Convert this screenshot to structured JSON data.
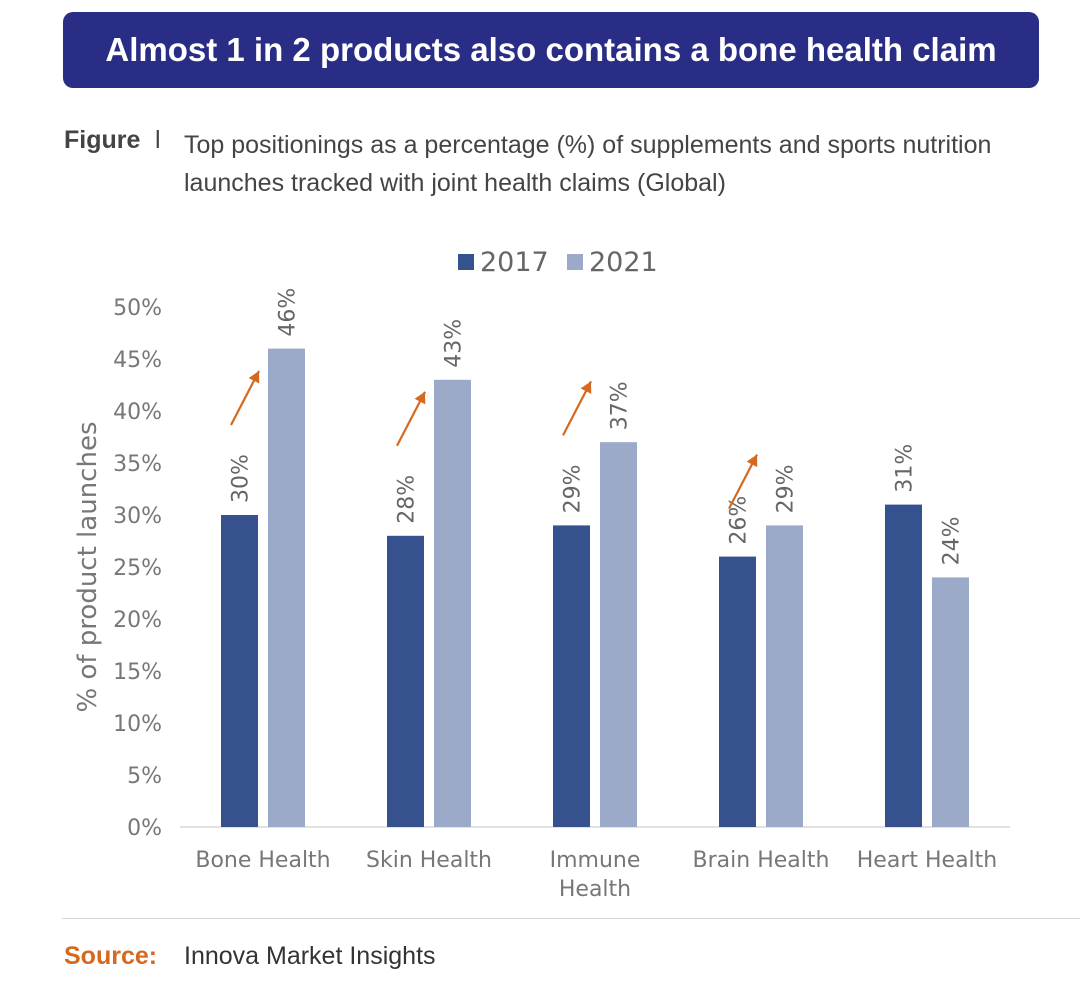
{
  "banner": {
    "title": "Almost 1 in 2 products also contains a bone health claim"
  },
  "figure": {
    "label": "Figure",
    "separator": "l",
    "caption": "Top positionings as a percentage (%) of supplements and sports nutrition launches tracked with joint health claims (Global)"
  },
  "source": {
    "label": "Source:",
    "text": "Innova Market Insights"
  },
  "chart_data": {
    "type": "bar",
    "categories": [
      "Bone Health",
      "Skin Health",
      "Immune Health",
      "Brain Health",
      "Heart Health"
    ],
    "series": [
      {
        "name": "2017",
        "values": [
          30,
          28,
          29,
          26,
          31
        ],
        "color": "#35528e"
      },
      {
        "name": "2021",
        "values": [
          46,
          43,
          37,
          29,
          24
        ],
        "color": "#9aaac8"
      }
    ],
    "data_labels": {
      "2017": [
        "30%",
        "28%",
        "29%",
        "26%",
        "31%"
      ],
      "2021": [
        "46%",
        "43%",
        "37%",
        "29%",
        "24%"
      ]
    },
    "ylabel": "% of product launches",
    "xlabel": "",
    "ylim": [
      0,
      50
    ],
    "yticks": [
      "0%",
      "5%",
      "10%",
      "15%",
      "20%",
      "25%",
      "30%",
      "35%",
      "40%",
      "45%",
      "50%"
    ],
    "legend": "top-center",
    "annotations": {
      "increase_arrows": [
        "Bone Health",
        "Skin Health",
        "Immune Health",
        "Brain Health"
      ],
      "arrow_color": "#d4691f"
    }
  }
}
